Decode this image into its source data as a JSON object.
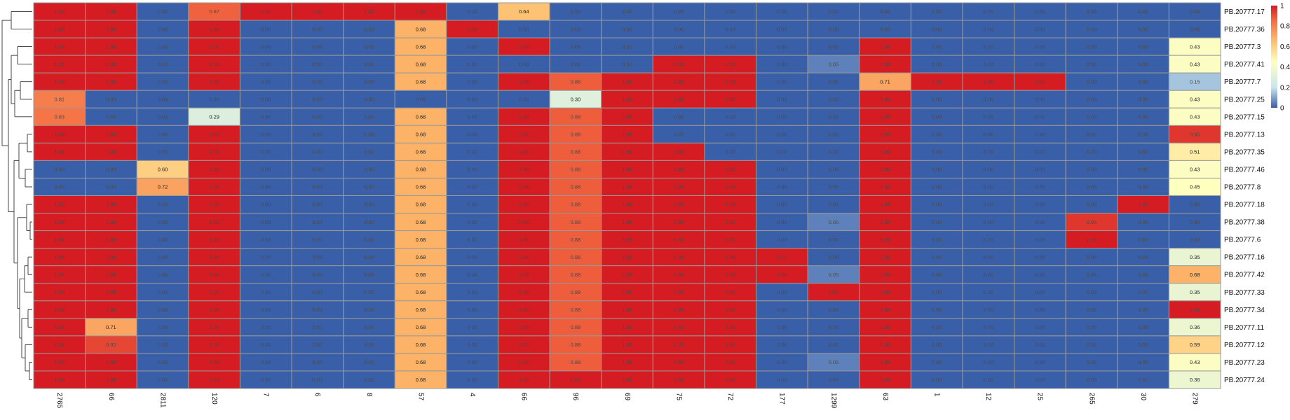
{
  "chart_data": {
    "type": "heatmap",
    "title": "",
    "columns": [
      "2765",
      "66",
      "2811",
      "120",
      "7",
      "6",
      "8",
      "57",
      "4",
      "66",
      "96",
      "69",
      "75",
      "72",
      "177",
      "1299",
      "63",
      "1",
      "12",
      "25",
      "265",
      "30",
      "279"
    ],
    "rows": [
      "PB.20777.17",
      "PB.20777.36",
      "PB.20777.3",
      "PB.20777.41",
      "PB.20777.7",
      "PB.20777.25",
      "PB.20777.15",
      "PB.20777.13",
      "PB.20777.35",
      "PB.20777.46",
      "PB.20777.8",
      "PB.20777.18",
      "PB.20777.38",
      "PB.20777.6",
      "PB.20777.16",
      "PB.20777.42",
      "PB.20777.33",
      "PB.20777.34",
      "PB.20777.11",
      "PB.20777.12",
      "PB.20777.23",
      "PB.20777.24"
    ],
    "values": [
      [
        1,
        1,
        0,
        0.87,
        1,
        1,
        1,
        1,
        0,
        0.64,
        0,
        0,
        0,
        0,
        0,
        0,
        0,
        0,
        0,
        0,
        0,
        0,
        0
      ],
      [
        1,
        1,
        0,
        1,
        0,
        0,
        0,
        0.68,
        1,
        0,
        0,
        0,
        0,
        0,
        0,
        0,
        0,
        0,
        0,
        0,
        0,
        0,
        0
      ],
      [
        1,
        1,
        0,
        1,
        0,
        0,
        0,
        0.68,
        0,
        1,
        0,
        0,
        0,
        0,
        0,
        0,
        1,
        0,
        0,
        0,
        0,
        0,
        0.43
      ],
      [
        1,
        1,
        0,
        1,
        0,
        0,
        0,
        0.68,
        0,
        0,
        0,
        0,
        1,
        1,
        0,
        0.05,
        1,
        0,
        0,
        0,
        0,
        0,
        0.43
      ],
      [
        1,
        1,
        0,
        1,
        0,
        0,
        0,
        0.68,
        0,
        1,
        0.88,
        1,
        1,
        1,
        0,
        0,
        0.71,
        1,
        1,
        1,
        0,
        0,
        0.15
      ],
      [
        0.81,
        0,
        0,
        0,
        0,
        0,
        0,
        0,
        0,
        0,
        0.3,
        1,
        1,
        1,
        0,
        0,
        1,
        0,
        0,
        0,
        0,
        0,
        0.43
      ],
      [
        0.83,
        0,
        0,
        0.29,
        0,
        0,
        0,
        0.68,
        0,
        1,
        0.88,
        1,
        0,
        0,
        0,
        0,
        1,
        0,
        0,
        0,
        0,
        0,
        0.43
      ],
      [
        1,
        1,
        0,
        1,
        0,
        0,
        0,
        0.68,
        0,
        1,
        0.88,
        1,
        0,
        0,
        0,
        0,
        1,
        0,
        0,
        0,
        0,
        0,
        0.95
      ],
      [
        1,
        1,
        0,
        1,
        0,
        0,
        0,
        0.68,
        0,
        1,
        0.88,
        1,
        1,
        0,
        0,
        0,
        1,
        0,
        0,
        0,
        0,
        0,
        0.51
      ],
      [
        0,
        0,
        0.6,
        1,
        0,
        0,
        0,
        0.68,
        0,
        1,
        0.88,
        1,
        1,
        1,
        0,
        0,
        1,
        0,
        0,
        0,
        0,
        0,
        0.43
      ],
      [
        0,
        0,
        0.72,
        1,
        0,
        0,
        0,
        0.68,
        0,
        1,
        0.88,
        1,
        1,
        1,
        0,
        0,
        1,
        0,
        0,
        0,
        0,
        0,
        0.45
      ],
      [
        1,
        1,
        0,
        1,
        0,
        0,
        0,
        0.68,
        0,
        1,
        0.88,
        1,
        1,
        1,
        0,
        0,
        1,
        0,
        0,
        0,
        0,
        1,
        0
      ],
      [
        1,
        1,
        0,
        1,
        0,
        0,
        0,
        0.68,
        0,
        1,
        0.88,
        1,
        1,
        1,
        0,
        0.05,
        1,
        0,
        0,
        0,
        0.95,
        0,
        0
      ],
      [
        1,
        1,
        0,
        1,
        0,
        0,
        0,
        0.68,
        0,
        1,
        0.88,
        1,
        1,
        1,
        0,
        0,
        1,
        0,
        0,
        0,
        1,
        0,
        0
      ],
      [
        1,
        1,
        0,
        1,
        0,
        0,
        0,
        0.68,
        0,
        1,
        0.88,
        1,
        1,
        1,
        1,
        0,
        1,
        0,
        0,
        0,
        0,
        0,
        0.35
      ],
      [
        1,
        1,
        0,
        1,
        0,
        0,
        0,
        0.68,
        0,
        1,
        0.88,
        1,
        1,
        1,
        1,
        0.05,
        1,
        0,
        0,
        0,
        0,
        0,
        0.68
      ],
      [
        1,
        1,
        0,
        1,
        0,
        0,
        0,
        0.68,
        0,
        1,
        0.88,
        1,
        1,
        1,
        0,
        1,
        1,
        0,
        0,
        0,
        0,
        0,
        0.35
      ],
      [
        1,
        1,
        0,
        1,
        0,
        0,
        0,
        0.68,
        0,
        1,
        0.88,
        1,
        1,
        1,
        0,
        0,
        1,
        0,
        0,
        0,
        0,
        0,
        1
      ],
      [
        1,
        0.71,
        0,
        1,
        0,
        0,
        0,
        0.68,
        0,
        1,
        0.88,
        1,
        1,
        1,
        0,
        0,
        1,
        0,
        0,
        0,
        0,
        0,
        0.36
      ],
      [
        1,
        0.92,
        0,
        1,
        0,
        0,
        0,
        0.68,
        0,
        1,
        0.88,
        1,
        1,
        1,
        0,
        0,
        1,
        0,
        0,
        0,
        0,
        0,
        0.59
      ],
      [
        1,
        1,
        0,
        1,
        0,
        0,
        0,
        0.68,
        0,
        1,
        0.88,
        1,
        1,
        1,
        0,
        0.05,
        1,
        0,
        0,
        0,
        0,
        0,
        0.43
      ],
      [
        1,
        1,
        0,
        1,
        0,
        0,
        0,
        0.68,
        0,
        1,
        1,
        1,
        1,
        1,
        0,
        0,
        1,
        0,
        0,
        0,
        0,
        0,
        0.36
      ]
    ],
    "value_range": [
      0,
      1
    ],
    "color_scale": [
      "#3a5fa9",
      "#c9e6ef",
      "#ffffbf",
      "#fdbf6f",
      "#f46d43",
      "#d41c22"
    ],
    "grid_color": "#999999",
    "legend": {
      "position": "right",
      "ticks": [
        "1",
        "0.8",
        "0.6",
        "0.4",
        "0.2",
        "0"
      ]
    },
    "row_dendrogram": "left",
    "cell_labels": true
  }
}
